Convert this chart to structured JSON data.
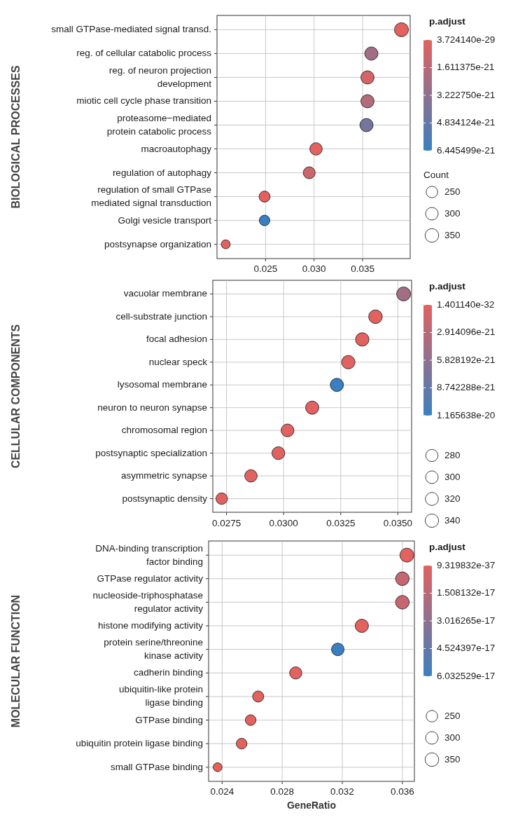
{
  "chart_data": [
    {
      "type": "bubble",
      "orientation": "horizontal",
      "ylabel": "BIOLOGICAL PROCESSES",
      "clabel": "p.adjust",
      "legend_title": "Count",
      "grid": true,
      "categories": [
        "small GTPase-mediated signal transd.",
        "reg. of cellular catabolic process",
        "reg. of neuron projection\ndevelopment",
        "miotic cell cycle phase transition",
        "proteasome−mediated\nprotein catabolic process",
        "macroautophagy",
        "regulation of autophagy",
        "regulation of small GTPase\nmediated signal transduction",
        "Golgi vesicle transport",
        "postsynapse organization"
      ],
      "values": [
        0.039,
        0.0359,
        0.0355,
        0.0355,
        0.0354,
        0.0302,
        0.0295,
        0.0249,
        0.0249,
        0.0209
      ],
      "sizes": [
        370,
        330,
        330,
        330,
        330,
        290,
        270,
        230,
        210,
        150
      ],
      "cvalues": [
        3.72414e-29,
        2.5e-21,
        5e-22,
        1.8e-21,
        4.2e-21,
        1e-24,
        8e-22,
        1e-24,
        6.445499e-21,
        1e-24
      ],
      "size_legend": [
        250,
        300,
        350
      ],
      "clim": [
        3.72414e-29,
        6.445499e-21
      ],
      "cticks": [
        {
          "value": 3.72414e-29,
          "label": "3.724140e-29"
        },
        {
          "value": 1.611375e-21,
          "label": "1.611375e-21"
        },
        {
          "value": 3.22275e-21,
          "label": "3.222750e-21"
        },
        {
          "value": 4.834124e-21,
          "label": "4.834124e-21"
        },
        {
          "value": 6.445499e-21,
          "label": "6.445499e-21"
        }
      ],
      "xlim": [
        0.02,
        0.0399
      ],
      "xticks": [
        {
          "value": 0.025,
          "label": "0.025"
        },
        {
          "value": 0.03,
          "label": "0.030"
        },
        {
          "value": 0.035,
          "label": "0.035"
        }
      ]
    },
    {
      "type": "bubble",
      "orientation": "horizontal",
      "ylabel": "CELLULAR COMPONENTS",
      "clabel": "p.adjust",
      "grid": true,
      "categories": [
        "vacuolar membrane",
        "cell-substrate junction",
        "focal adhesion",
        "nuclear speck",
        "lysosomal membrane",
        "neuron to neuron synapse",
        "chromosomal region",
        "postsynaptic specialization",
        "asymmetric synapse",
        "postsynaptic density"
      ],
      "values": [
        0.03525,
        0.03402,
        0.03344,
        0.03283,
        0.03233,
        0.03125,
        0.03017,
        0.02977,
        0.02857,
        0.02729
      ],
      "sizes": [
        370,
        350,
        340,
        340,
        330,
        330,
        310,
        310,
        290,
        250
      ],
      "cvalues": [
        4.5e-21,
        1e-22,
        1e-22,
        1e-22,
        1.165638e-20,
        1e-22,
        1e-22,
        1e-22,
        1e-22,
        1e-22
      ],
      "size_legend": [
        280,
        300,
        320,
        340
      ],
      "clim": [
        1.40114e-32,
        1.165638e-20
      ],
      "cticks": [
        {
          "value": 1.40114e-32,
          "label": "1.401140e-32"
        },
        {
          "value": 2.914096e-21,
          "label": "2.914096e-21"
        },
        {
          "value": 5.828192e-21,
          "label": "5.828192e-21"
        },
        {
          "value": 8.742288e-21,
          "label": "8.742288e-21"
        },
        {
          "value": 1.165638e-20,
          "label": "1.165638e-20"
        }
      ],
      "xlim": [
        0.0269,
        0.0356
      ],
      "xticks": [
        {
          "value": 0.0275,
          "label": "0.0275"
        },
        {
          "value": 0.03,
          "label": "0.0300"
        },
        {
          "value": 0.0325,
          "label": "0.0325"
        },
        {
          "value": 0.035,
          "label": "0.0350"
        }
      ]
    },
    {
      "type": "bubble",
      "orientation": "horizontal",
      "ylabel": "MOLECULAR FUNCTION",
      "xlabel": "GeneRatio",
      "clabel": "p.adjust",
      "grid": true,
      "categories": [
        "DNA-binding transcription\nfactor binding",
        "GTPase regulator activity",
        "nucleoside-triphosphatase\nregulator activity",
        "histone modifying activity",
        "protein serine/threonine\nkinase activity",
        "cadherin binding",
        "ubiquitin-like protein\nligase binding",
        "GTPase binding",
        "ubiquitin protein ligase binding",
        "small GTPase binding"
      ],
      "values": [
        0.0363,
        0.036,
        0.036,
        0.0333,
        0.0317,
        0.0289,
        0.0264,
        0.0259,
        0.0253,
        0.0237
      ],
      "sizes": [
        367,
        350,
        350,
        333,
        300,
        283,
        233,
        217,
        217,
        150
      ],
      "cvalues": [
        1e-20,
        1e-17,
        1e-17,
        2e-19,
        6.032529e-17,
        1e-20,
        1e-20,
        1e-20,
        1e-20,
        1e-20
      ],
      "size_legend": [
        250,
        300,
        350
      ],
      "clim": [
        9.319832e-37,
        6.032529e-17
      ],
      "cticks": [
        {
          "value": 9.319832e-37,
          "label": "9.319832e-37"
        },
        {
          "value": 1.508132e-17,
          "label": "1.508132e-17"
        },
        {
          "value": 3.016265e-17,
          "label": "3.016265e-17"
        },
        {
          "value": 4.524397e-17,
          "label": "4.524397e-17"
        },
        {
          "value": 6.032529e-17,
          "label": "6.032529e-17"
        }
      ],
      "xlim": [
        0.0231,
        0.0368
      ],
      "xticks": [
        {
          "value": 0.024,
          "label": "0.024"
        },
        {
          "value": 0.028,
          "label": "0.028"
        },
        {
          "value": 0.032,
          "label": "0.032"
        },
        {
          "value": 0.036,
          "label": "0.036"
        }
      ]
    }
  ]
}
